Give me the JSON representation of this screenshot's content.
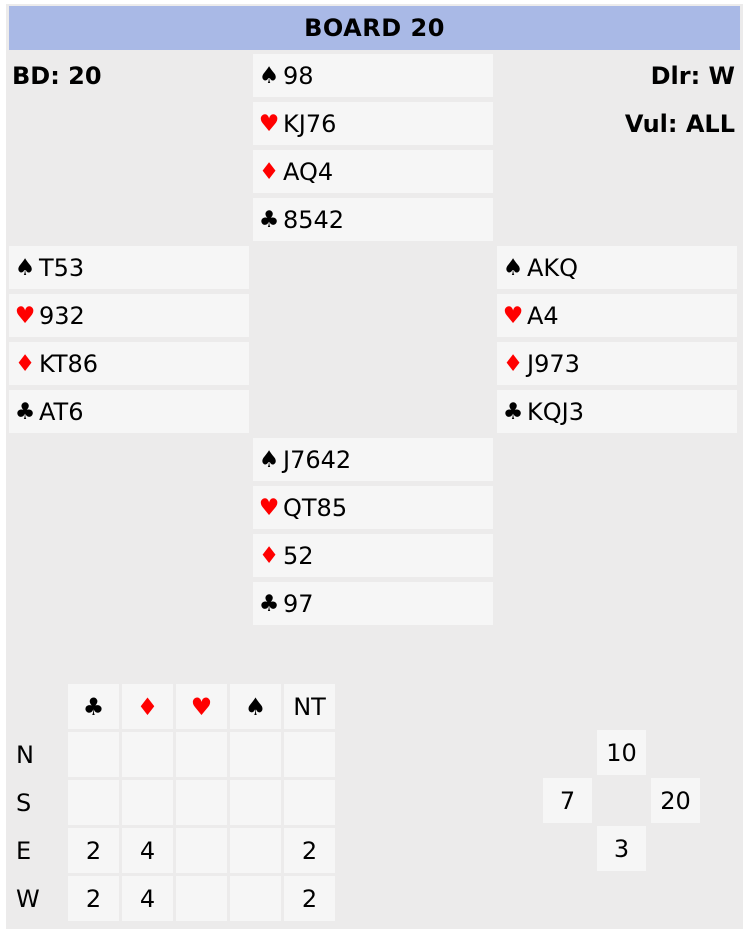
{
  "title": "BOARD 20",
  "board_label": "BD: 20",
  "dealer_label": "Dlr: W",
  "vul_label": "Vul: ALL",
  "suit_glyphs": {
    "spades": "♠",
    "hearts": "♥",
    "diamonds": "♦",
    "clubs": "♣"
  },
  "colors": {
    "title_bg": "#a9b9e6",
    "red_suit": "#ff0000",
    "panel_bg": "#ecebeb",
    "cell_bg": "#f6f6f6"
  },
  "hands": {
    "north": {
      "spades": "98",
      "hearts": "KJ76",
      "diamonds": "AQ4",
      "clubs": "8542"
    },
    "west": {
      "spades": "T53",
      "hearts": "932",
      "diamonds": "KT86",
      "clubs": "AT6"
    },
    "east": {
      "spades": "AKQ",
      "hearts": "A4",
      "diamonds": "J973",
      "clubs": "KQJ3"
    },
    "south": {
      "spades": "J7642",
      "hearts": "QT85",
      "diamonds": "52",
      "clubs": "97"
    }
  },
  "makeable_table": {
    "columns": [
      "♣",
      "♦",
      "♥",
      "♠",
      "NT"
    ],
    "rows": [
      {
        "player": "N",
        "values": [
          "",
          "",
          "",
          "",
          ""
        ]
      },
      {
        "player": "S",
        "values": [
          "",
          "",
          "",
          "",
          ""
        ]
      },
      {
        "player": "E",
        "values": [
          "2",
          "4",
          "",
          "",
          "2"
        ]
      },
      {
        "player": "W",
        "values": [
          "2",
          "4",
          "",
          "",
          "2"
        ]
      }
    ]
  },
  "par_diamond": {
    "top": "10",
    "left": "7",
    "right": "20",
    "bottom": "3"
  }
}
